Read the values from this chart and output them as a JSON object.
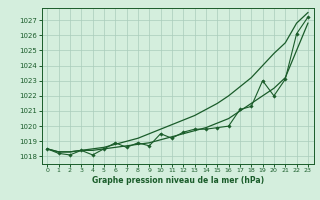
{
  "xlabel": "Graphe pression niveau de la mer (hPa)",
  "bg_color": "#d4eedd",
  "grid_color": "#aaccbb",
  "line_color": "#1a5c2a",
  "xlim": [
    -0.5,
    23.5
  ],
  "ylim": [
    1017.5,
    1027.8
  ],
  "yticks": [
    1018,
    1019,
    1020,
    1021,
    1022,
    1023,
    1024,
    1025,
    1026,
    1027
  ],
  "xticks": [
    0,
    1,
    2,
    3,
    4,
    5,
    6,
    7,
    8,
    9,
    10,
    11,
    12,
    13,
    14,
    15,
    16,
    17,
    18,
    19,
    20,
    21,
    22,
    23
  ],
  "hours": [
    0,
    1,
    2,
    3,
    4,
    5,
    6,
    7,
    8,
    9,
    10,
    11,
    12,
    13,
    14,
    15,
    16,
    17,
    18,
    19,
    20,
    21,
    22,
    23
  ],
  "line_jagged": [
    1018.5,
    1018.2,
    1018.1,
    1018.4,
    1018.1,
    1018.5,
    1018.9,
    1018.6,
    1018.9,
    1018.7,
    1019.5,
    1019.2,
    1019.6,
    1019.8,
    1019.8,
    1019.9,
    1020.0,
    1021.1,
    1021.3,
    1023.0,
    1022.0,
    1023.1,
    1026.1,
    1027.2
  ],
  "line_lower": [
    1018.5,
    1018.3,
    1018.3,
    1018.4,
    1018.4,
    1018.5,
    1018.6,
    1018.7,
    1018.8,
    1018.9,
    1019.1,
    1019.3,
    1019.5,
    1019.7,
    1019.9,
    1020.2,
    1020.5,
    1021.0,
    1021.5,
    1022.0,
    1022.5,
    1023.2,
    1025.0,
    1026.8
  ],
  "line_upper": [
    1018.5,
    1018.3,
    1018.3,
    1018.4,
    1018.5,
    1018.6,
    1018.8,
    1019.0,
    1019.2,
    1019.5,
    1019.8,
    1020.1,
    1020.4,
    1020.7,
    1021.1,
    1021.5,
    1022.0,
    1022.6,
    1023.2,
    1024.0,
    1024.8,
    1025.5,
    1026.8,
    1027.5
  ]
}
